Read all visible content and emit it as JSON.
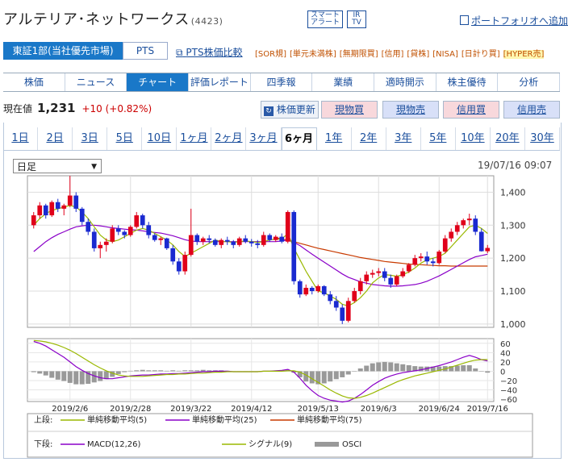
{
  "header": {
    "company": "アルテリア･ネットワークス",
    "code": "(4423)",
    "tag1_l1": "スマート",
    "tag1_l2": "アラート",
    "tag2_l1": "IR",
    "tag2_l2": "TV",
    "portfolio": "ポートフォリオへ追加"
  },
  "market": {
    "selected": "東証1部(当社優先市場)",
    "pts": "PTS",
    "pts_link": "PTS株価比較",
    "badges": [
      "[SOR規]",
      "[単元未満株]",
      "[無期限買]",
      "[信用]",
      "[貸株]",
      "[NISA]",
      "[日計り買]",
      "[HYPER売]"
    ]
  },
  "nav": [
    "株価",
    "ニュース",
    "チャート",
    "評価レポート",
    "四季報",
    "業績",
    "適時開示",
    "株主優待",
    "分析"
  ],
  "price": {
    "label": "現在値",
    "value": "1,231",
    "change": "+10 (+0.82%)",
    "update": "株価更新",
    "buy": "現物買",
    "sell": "現物売",
    "margin_buy": "信用買",
    "margin_sell": "信用売"
  },
  "periods": [
    "1日",
    "2日",
    "3日",
    "5日",
    "10日",
    "1ヶ月",
    "2ヶ月",
    "3ヶ月",
    "6ヶ月",
    "1年",
    "2年",
    "3年",
    "5年",
    "10年",
    "20年",
    "30年"
  ],
  "selector": "日足",
  "datetime": "19/07/16 09:07",
  "colors": {
    "up": "#e0001a",
    "down": "#1a2ad0",
    "ma5": "#9ab800",
    "ma25": "#8a00c8",
    "ma75": "#c83a00",
    "osci": "#999999",
    "accent": "#1a78c8"
  },
  "chart_data": {
    "type": "candlestick",
    "price_axis": {
      "ylim": [
        990,
        1450
      ],
      "ticks": [
        1000,
        1100,
        1200,
        1300,
        1400
      ],
      "tick_labels": [
        "1,000",
        "1,100",
        "1,200",
        "1,300",
        "1,400"
      ]
    },
    "osc_axis": {
      "ylim": [
        -65,
        70
      ],
      "ticks": [
        -60,
        -40,
        -20,
        0,
        20,
        40,
        60
      ],
      "tick_labels": [
        "−60",
        "−40",
        "−20",
        "0",
        "20",
        "40",
        "60"
      ]
    },
    "date_labels": [
      "2019/2/6",
      "2019/2/28",
      "2019/3/22",
      "2019/4/12",
      "2019/5/13",
      "2019/6/3",
      "2019/6/24",
      "2019/7/16"
    ],
    "candles": [
      [
        1300,
        1340,
        1290,
        1330
      ],
      [
        1330,
        1370,
        1320,
        1360
      ],
      [
        1360,
        1365,
        1320,
        1330
      ],
      [
        1330,
        1375,
        1325,
        1370
      ],
      [
        1370,
        1380,
        1340,
        1350
      ],
      [
        1350,
        1365,
        1330,
        1360
      ],
      [
        1360,
        1450,
        1355,
        1390
      ],
      [
        1390,
        1400,
        1340,
        1350
      ],
      [
        1350,
        1355,
        1300,
        1310
      ],
      [
        1310,
        1320,
        1270,
        1280
      ],
      [
        1280,
        1290,
        1220,
        1230
      ],
      [
        1230,
        1250,
        1200,
        1240
      ],
      [
        1240,
        1260,
        1220,
        1250
      ],
      [
        1250,
        1300,
        1245,
        1290
      ],
      [
        1290,
        1300,
        1270,
        1280
      ],
      [
        1280,
        1285,
        1260,
        1270
      ],
      [
        1270,
        1300,
        1265,
        1295
      ],
      [
        1295,
        1340,
        1290,
        1330
      ],
      [
        1330,
        1335,
        1290,
        1300
      ],
      [
        1300,
        1310,
        1260,
        1270
      ],
      [
        1270,
        1275,
        1250,
        1255
      ],
      [
        1255,
        1265,
        1240,
        1260
      ],
      [
        1260,
        1262,
        1225,
        1230
      ],
      [
        1230,
        1240,
        1180,
        1190
      ],
      [
        1190,
        1200,
        1150,
        1160
      ],
      [
        1160,
        1220,
        1150,
        1210
      ],
      [
        1210,
        1350,
        1205,
        1270
      ],
      [
        1270,
        1275,
        1240,
        1250
      ],
      [
        1250,
        1265,
        1240,
        1260
      ],
      [
        1260,
        1270,
        1245,
        1255
      ],
      [
        1255,
        1260,
        1235,
        1240
      ],
      [
        1240,
        1260,
        1230,
        1255
      ],
      [
        1255,
        1265,
        1240,
        1250
      ],
      [
        1250,
        1255,
        1230,
        1240
      ],
      [
        1240,
        1265,
        1235,
        1260
      ],
      [
        1260,
        1270,
        1245,
        1250
      ],
      [
        1250,
        1258,
        1235,
        1245
      ],
      [
        1245,
        1255,
        1230,
        1240
      ],
      [
        1240,
        1280,
        1235,
        1270
      ],
      [
        1270,
        1275,
        1250,
        1255
      ],
      [
        1255,
        1270,
        1250,
        1265
      ],
      [
        1265,
        1275,
        1245,
        1250
      ],
      [
        1250,
        1345,
        1245,
        1340
      ],
      [
        1340,
        1345,
        1120,
        1130
      ],
      [
        1130,
        1135,
        1080,
        1090
      ],
      [
        1090,
        1120,
        1085,
        1110
      ],
      [
        1110,
        1115,
        1090,
        1100
      ],
      [
        1100,
        1120,
        1095,
        1115
      ],
      [
        1115,
        1118,
        1085,
        1090
      ],
      [
        1090,
        1100,
        1060,
        1070
      ],
      [
        1070,
        1085,
        1040,
        1050
      ],
      [
        1050,
        1060,
        1000,
        1010
      ],
      [
        1010,
        1080,
        1005,
        1070
      ],
      [
        1070,
        1110,
        1065,
        1100
      ],
      [
        1100,
        1140,
        1090,
        1130
      ],
      [
        1130,
        1160,
        1120,
        1150
      ],
      [
        1150,
        1165,
        1140,
        1155
      ],
      [
        1155,
        1170,
        1145,
        1160
      ],
      [
        1160,
        1170,
        1130,
        1140
      ],
      [
        1140,
        1150,
        1110,
        1120
      ],
      [
        1120,
        1150,
        1115,
        1145
      ],
      [
        1145,
        1170,
        1140,
        1160
      ],
      [
        1160,
        1185,
        1155,
        1180
      ],
      [
        1180,
        1210,
        1175,
        1200
      ],
      [
        1200,
        1215,
        1190,
        1205
      ],
      [
        1205,
        1220,
        1180,
        1190
      ],
      [
        1190,
        1200,
        1175,
        1185
      ],
      [
        1185,
        1225,
        1180,
        1220
      ],
      [
        1220,
        1270,
        1215,
        1260
      ],
      [
        1260,
        1290,
        1250,
        1280
      ],
      [
        1280,
        1310,
        1270,
        1300
      ],
      [
        1300,
        1320,
        1290,
        1315
      ],
      [
        1315,
        1335,
        1300,
        1320
      ],
      [
        1320,
        1330,
        1270,
        1280
      ],
      [
        1280,
        1290,
        1220,
        1221
      ],
      [
        1221,
        1240,
        1215,
        1231
      ]
    ],
    "series": [
      {
        "name": "単純移動平均(5)",
        "values": [
          1300,
          1320,
          1335,
          1345,
          1350,
          1355,
          1360,
          1355,
          1340,
          1320,
          1295,
          1270,
          1255,
          1250,
          1255,
          1265,
          1275,
          1285,
          1290,
          1285,
          1275,
          1265,
          1255,
          1240,
          1220,
          1205,
          1215,
          1225,
          1235,
          1245,
          1255,
          1250,
          1250,
          1248,
          1250,
          1252,
          1250,
          1248,
          1250,
          1255,
          1258,
          1258,
          1275,
          1230,
          1195,
          1160,
          1130,
          1100,
          1095,
          1085,
          1075,
          1060,
          1055,
          1065,
          1080,
          1100,
          1125,
          1140,
          1150,
          1148,
          1145,
          1150,
          1158,
          1170,
          1185,
          1195,
          1200,
          1205,
          1215,
          1235,
          1255,
          1275,
          1295,
          1300,
          1290,
          1275
        ]
      },
      {
        "name": "単純移動平均(25)",
        "values": [
          1220,
          1235,
          1250,
          1262,
          1272,
          1280,
          1288,
          1295,
          1298,
          1300,
          1300,
          1298,
          1295,
          1292,
          1290,
          1288,
          1286,
          1285,
          1283,
          1280,
          1278,
          1276,
          1272,
          1268,
          1262,
          1256,
          1252,
          1250,
          1250,
          1250,
          1250,
          1250,
          1250,
          1250,
          1250,
          1250,
          1250,
          1250,
          1250,
          1250,
          1250,
          1252,
          1255,
          1248,
          1238,
          1225,
          1212,
          1200,
          1188,
          1176,
          1164,
          1152,
          1142,
          1135,
          1128,
          1124,
          1120,
          1118,
          1116,
          1115,
          1115,
          1116,
          1118,
          1120,
          1124,
          1130,
          1138,
          1146,
          1156,
          1166,
          1176,
          1186,
          1196,
          1204,
          1208,
          1212
        ]
      },
      {
        "name": "単純移動平均(75)",
        "values": [
          null,
          null,
          null,
          null,
          null,
          null,
          null,
          null,
          null,
          null,
          null,
          null,
          null,
          null,
          null,
          null,
          null,
          null,
          null,
          null,
          null,
          null,
          null,
          null,
          null,
          null,
          null,
          null,
          null,
          null,
          null,
          null,
          null,
          null,
          null,
          null,
          null,
          null,
          null,
          null,
          1262,
          1258,
          1255,
          1250,
          1245,
          1240,
          1235,
          1230,
          1226,
          1222,
          1218,
          1214,
          1210,
          1206,
          1202,
          1199,
          1196,
          1193,
          1190,
          1188,
          1186,
          1184,
          1182,
          1181,
          1180,
          1179,
          1178,
          1177,
          1177,
          1176,
          1176,
          1176,
          1176,
          1176,
          1176,
          1176
        ]
      },
      {
        "name": "MACD(12,26)",
        "values": [
          64,
          60,
          54,
          46,
          38,
          30,
          20,
          10,
          2,
          -5,
          -10,
          -14,
          -16,
          -16,
          -14,
          -12,
          -10,
          -9,
          -8,
          -8,
          -7,
          -6,
          -6,
          -5,
          -5,
          -4,
          -3,
          -2,
          -1,
          -1,
          0,
          0,
          0,
          -1,
          -1,
          -1,
          -1,
          -1,
          0,
          0,
          1,
          2,
          4,
          -2,
          -15,
          -30,
          -42,
          -52,
          -58,
          -62,
          -64,
          -66,
          -64,
          -58,
          -50,
          -40,
          -30,
          -22,
          -15,
          -10,
          -6,
          -3,
          -1,
          1,
          3,
          6,
          9,
          12,
          16,
          20,
          25,
          30,
          34,
          30,
          25,
          22
        ]
      },
      {
        "name": "シグナル(9)",
        "values": [
          66,
          65,
          63,
          60,
          56,
          51,
          45,
          38,
          30,
          22,
          14,
          7,
          1,
          -4,
          -8,
          -10,
          -11,
          -11,
          -11,
          -10,
          -9,
          -8,
          -7,
          -7,
          -6,
          -6,
          -5,
          -4,
          -4,
          -3,
          -2,
          -2,
          -1,
          -1,
          -1,
          -1,
          -1,
          -1,
          0,
          0,
          0,
          0,
          1,
          1,
          -2,
          -8,
          -16,
          -24,
          -32,
          -40,
          -47,
          -53,
          -57,
          -58,
          -56,
          -52,
          -47,
          -41,
          -35,
          -29,
          -23,
          -18,
          -14,
          -10,
          -7,
          -4,
          -1,
          2,
          5,
          9,
          13,
          17,
          21,
          24,
          25,
          25
        ]
      },
      {
        "name": "OSCI",
        "values": [
          -2,
          -5,
          -9,
          -14,
          -18,
          -21,
          -25,
          -28,
          -28,
          -27,
          -24,
          -21,
          -17,
          -12,
          -6,
          -2,
          1,
          2,
          3,
          2,
          2,
          2,
          1,
          2,
          1,
          2,
          2,
          2,
          3,
          2,
          2,
          2,
          1,
          0,
          0,
          0,
          0,
          0,
          0,
          0,
          1,
          2,
          3,
          -3,
          -13,
          -22,
          -26,
          -28,
          -26,
          -22,
          -17,
          -13,
          -7,
          0,
          6,
          12,
          17,
          19,
          20,
          19,
          17,
          15,
          13,
          11,
          10,
          10,
          10,
          10,
          11,
          11,
          12,
          13,
          13,
          6,
          0,
          -3
        ]
      }
    ],
    "legend": {
      "upper_label": "上段:",
      "lower_label": "下段:",
      "ma5": "単純移動平均(5)",
      "ma25": "単純移動平均(25)",
      "ma75": "単純移動平均(75)",
      "macd": "MACD(12,26)",
      "signal": "シグナル(9)",
      "osci": "OSCI"
    },
    "grid": true
  }
}
